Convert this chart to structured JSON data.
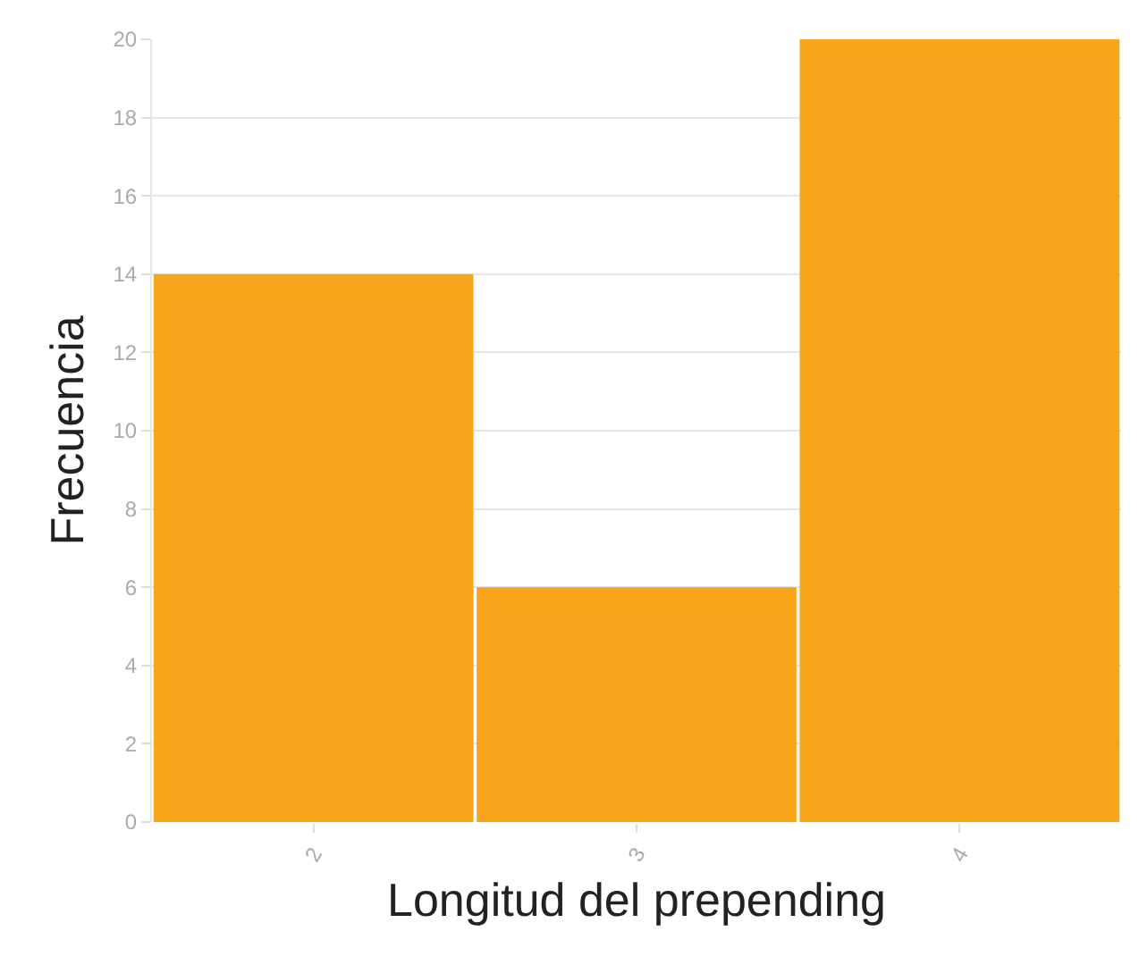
{
  "chart_data": {
    "type": "bar",
    "categories": [
      "2",
      "3",
      "4"
    ],
    "values": [
      14,
      6,
      20
    ],
    "color": "#f8a51b",
    "xlabel": "Longitud del prepending",
    "ylabel": "Frecuencia",
    "ylim": [
      0,
      20
    ],
    "yticks": [
      0,
      2,
      4,
      6,
      8,
      10,
      12,
      14,
      16,
      18,
      20
    ],
    "grid": "y"
  }
}
